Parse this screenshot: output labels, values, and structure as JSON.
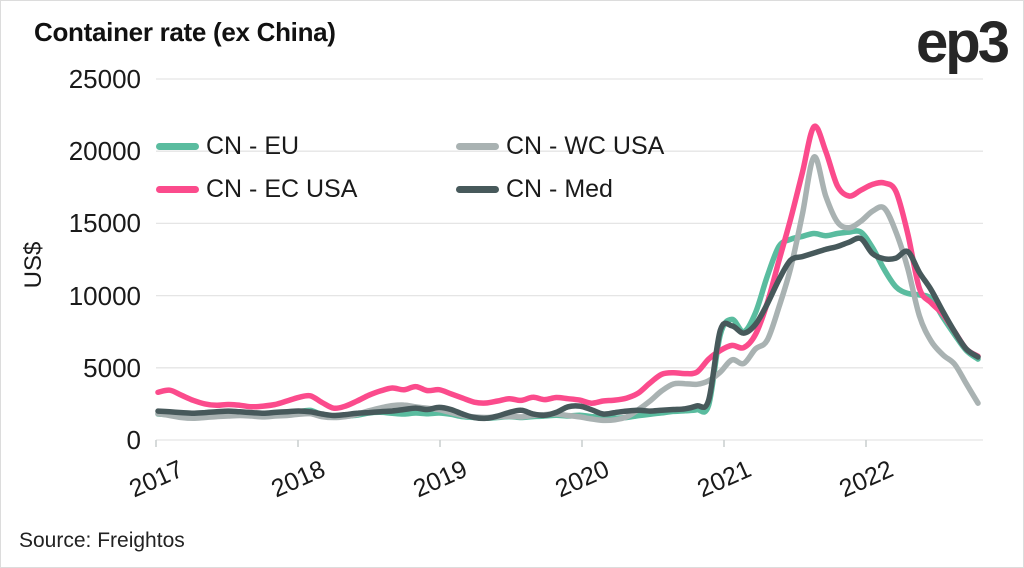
{
  "title": "Container rate (ex China)",
  "logo": "ep3",
  "source": "Source: Freightos",
  "colors": {
    "cn_eu": "#5abc9f",
    "cn_ec_usa": "#fb4b8c",
    "cn_wc_usa": "#a9b2b2",
    "cn_med": "#47595b",
    "gridline": "#e5e5e5",
    "axis_tick": "#c9cdcd",
    "text": "#1a1a1a"
  },
  "chart_data": {
    "type": "line",
    "title": "Container rate (ex China)",
    "xlabel": "",
    "ylabel": "US$",
    "ylim": [
      0,
      25000
    ],
    "yticks": [
      0,
      5000,
      10000,
      15000,
      20000,
      25000
    ],
    "xticks": [
      "2017",
      "2018",
      "2019",
      "2020",
      "2021",
      "2022"
    ],
    "grid": true,
    "legend_position": "top-left-two-columns",
    "x_unit": "month",
    "x_start": "2017-01",
    "x_end": "2022-11",
    "series": [
      {
        "name": "CN - EU",
        "color": "#5abc9f",
        "values": [
          1800,
          1750,
          1700,
          1650,
          1700,
          1780,
          1850,
          1900,
          1820,
          1720,
          1760,
          1820,
          1950,
          2050,
          1750,
          1600,
          1650,
          1720,
          1870,
          1920,
          1850,
          1800,
          1870,
          1820,
          1870,
          1780,
          1620,
          1560,
          1500,
          1560,
          1620,
          1560,
          1620,
          1660,
          1720,
          1660,
          1720,
          1620,
          1560,
          1520,
          1560,
          1680,
          1780,
          1880,
          1980,
          2020,
          2100,
          2400,
          7300,
          8350,
          7500,
          8800,
          11300,
          13400,
          13900,
          14100,
          14300,
          14150,
          14300,
          14400,
          14400,
          13300,
          11800,
          10600,
          10150,
          10050,
          9800,
          8500,
          7300,
          6200,
          5600
        ]
      },
      {
        "name": "CN - EC USA",
        "color": "#fb4b8c",
        "values": [
          3300,
          3450,
          3100,
          2750,
          2500,
          2400,
          2460,
          2400,
          2300,
          2350,
          2460,
          2700,
          2950,
          3060,
          2600,
          2200,
          2350,
          2700,
          3100,
          3400,
          3600,
          3480,
          3700,
          3420,
          3480,
          3200,
          2900,
          2620,
          2560,
          2700,
          2860,
          2740,
          2960,
          2800,
          2940,
          2860,
          2760,
          2550,
          2700,
          2760,
          2900,
          3250,
          3950,
          4550,
          4660,
          4600,
          4700,
          5600,
          6200,
          6550,
          6400,
          7300,
          9450,
          12400,
          15300,
          18500,
          21700,
          20000,
          17600,
          16900,
          17300,
          17700,
          17800,
          17200,
          14300,
          10500,
          9500,
          8700,
          7500,
          6300,
          5800
        ]
      },
      {
        "name": "CN - WC USA",
        "color": "#a9b2b2",
        "values": [
          1820,
          1700,
          1560,
          1500,
          1560,
          1620,
          1660,
          1700,
          1660,
          1600,
          1660,
          1700,
          1780,
          1820,
          1620,
          1560,
          1620,
          1780,
          2020,
          2220,
          2380,
          2420,
          2300,
          2200,
          2100,
          1900,
          1700,
          1600,
          1560,
          1600,
          1650,
          1600,
          1700,
          1760,
          1800,
          1700,
          1600,
          1460,
          1360,
          1400,
          1600,
          2100,
          2700,
          3400,
          3880,
          3900,
          3860,
          4100,
          4700,
          5550,
          5300,
          6300,
          6900,
          9200,
          11900,
          15600,
          19600,
          16900,
          15100,
          14700,
          15150,
          15850,
          16050,
          14400,
          11900,
          8600,
          6850,
          5900,
          5250,
          3900,
          2550
        ]
      },
      {
        "name": "CN - Med",
        "color": "#47595b",
        "values": [
          2000,
          1950,
          1900,
          1850,
          1900,
          1960,
          2000,
          1950,
          1900,
          1850,
          1910,
          1960,
          2010,
          1950,
          1800,
          1700,
          1760,
          1850,
          1900,
          1960,
          2010,
          2110,
          2210,
          2110,
          2260,
          2110,
          1800,
          1560,
          1500,
          1660,
          1910,
          2060,
          1810,
          1710,
          1910,
          2300,
          2350,
          2100,
          1800,
          1900,
          2000,
          2060,
          2000,
          2060,
          2110,
          2160,
          2360,
          2750,
          7600,
          7900,
          7400,
          8000,
          9400,
          11100,
          12450,
          12700,
          12950,
          13200,
          13400,
          13700,
          13950,
          12900,
          12550,
          12600,
          13050,
          11600,
          10400,
          8900,
          7500,
          6300,
          5750
        ]
      }
    ]
  }
}
